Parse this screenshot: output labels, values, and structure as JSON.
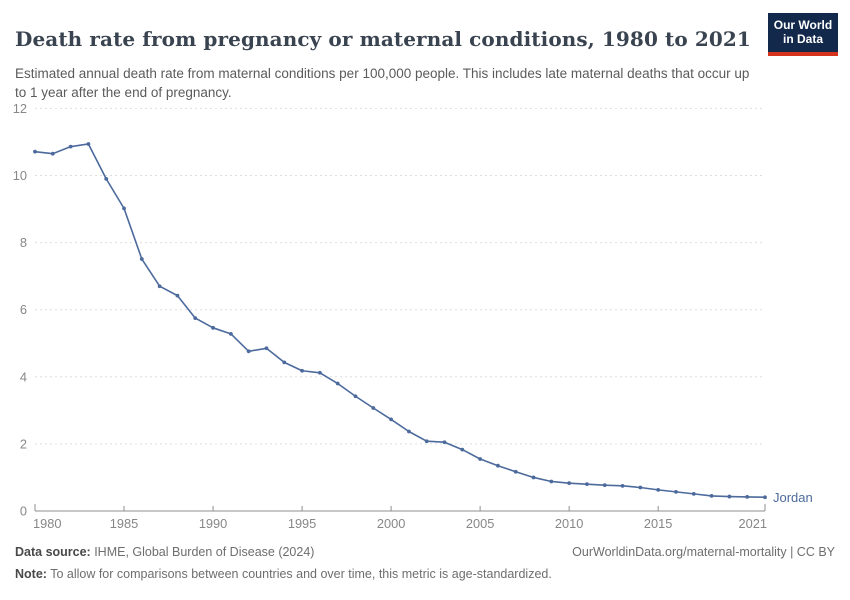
{
  "header": {
    "title": "Death rate from pregnancy or maternal conditions, 1980 to 2021",
    "subtitle": "Estimated annual death rate from maternal conditions per 100,000 people. This includes late maternal deaths that occur up to 1 year after the end of pregnancy.",
    "logo": {
      "line1": "Our World",
      "line2": "in Data",
      "bg_color": "#12294B",
      "stripe_color": "#D5331C"
    }
  },
  "chart_data": {
    "type": "line",
    "title": "Death rate from pregnancy or maternal conditions, 1980 to 2021",
    "xlabel": "",
    "ylabel": "",
    "xlim": [
      1980,
      2021
    ],
    "ylim": [
      0,
      12
    ],
    "x_ticks": [
      1980,
      1985,
      1990,
      1995,
      2000,
      2005,
      2010,
      2015,
      2021
    ],
    "y_ticks": [
      0,
      2,
      4,
      6,
      8,
      10,
      12
    ],
    "grid": "horizontal-dashed",
    "legend_position": "end-of-line-label",
    "x": [
      1980,
      1981,
      1982,
      1983,
      1984,
      1985,
      1986,
      1987,
      1988,
      1989,
      1990,
      1991,
      1992,
      1993,
      1994,
      1995,
      1996,
      1997,
      1998,
      1999,
      2000,
      2001,
      2002,
      2003,
      2004,
      2005,
      2006,
      2007,
      2008,
      2009,
      2010,
      2011,
      2012,
      2013,
      2014,
      2015,
      2016,
      2017,
      2018,
      2019,
      2020,
      2021
    ],
    "series": [
      {
        "name": "Jordan",
        "color": "#4C6A9C",
        "values": [
          10.71,
          10.65,
          10.86,
          10.94,
          9.9,
          9.02,
          7.51,
          6.7,
          6.42,
          5.75,
          5.46,
          5.28,
          4.76,
          4.85,
          4.43,
          4.18,
          4.12,
          3.8,
          3.42,
          3.07,
          2.73,
          2.37,
          2.08,
          2.05,
          1.83,
          1.55,
          1.35,
          1.17,
          1.0,
          0.88,
          0.83,
          0.8,
          0.77,
          0.75,
          0.7,
          0.63,
          0.57,
          0.51,
          0.45,
          0.43,
          0.42,
          0.41
        ]
      }
    ],
    "colors": {
      "gridline": "#dedede",
      "axis_line": "#8f8f8f",
      "tick_label": "#878787"
    }
  },
  "footer": {
    "data_source_label": "Data source:",
    "data_source_value": " IHME, Global Burden of Disease (2024)",
    "link": "OurWorldinData.org/maternal-mortality | CC BY",
    "note_label": "Note:",
    "note_value": " To allow for comparisons between countries and over time, this metric is age-standardized."
  }
}
